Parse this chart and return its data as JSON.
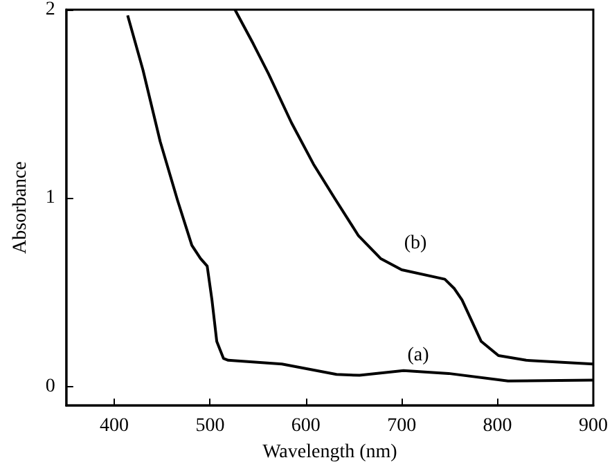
{
  "chart_data": {
    "type": "line",
    "xlabel": "Wavelength (nm)",
    "ylabel": "Absorbance",
    "xlim": [
      350,
      900
    ],
    "xticks": [
      400,
      500,
      600,
      700,
      800,
      900
    ],
    "ylim": [
      -0.1,
      2
    ],
    "yticks": [
      0,
      1,
      2
    ],
    "grid": false,
    "marker": "none",
    "line_style": "solid",
    "series": [
      {
        "color": "#000000",
        "x": [
          414,
          430,
          448,
          466,
          481,
          490,
          497,
          502,
          507,
          514,
          519,
          575,
          632,
          656,
          702,
          749,
          811,
          900
        ],
        "values": [
          1.97,
          1.68,
          1.3,
          0.99,
          0.75,
          0.68,
          0.64,
          0.46,
          0.24,
          0.15,
          0.14,
          0.12,
          0.065,
          0.06,
          0.085,
          0.07,
          0.03,
          0.035
        ]
      },
      {
        "color": "#000000",
        "x": [
          526,
          545,
          561,
          585,
          608,
          630,
          655,
          678,
          700,
          745,
          755,
          763,
          783,
          801,
          830,
          900
        ],
        "values": [
          2,
          1.82,
          1.66,
          1.4,
          1.18,
          1,
          0.8,
          0.68,
          0.62,
          0.57,
          0.52,
          0.46,
          0.24,
          0.165,
          0.14,
          0.12
        ]
      }
    ],
    "annotations": [
      "(a)",
      "(b)"
    ]
  }
}
